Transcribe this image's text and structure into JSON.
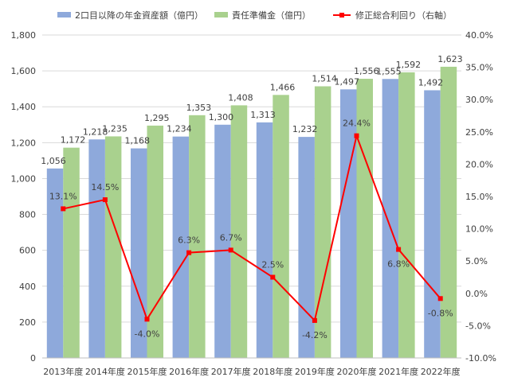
{
  "chart_data": {
    "type": "bar",
    "categories": [
      "2013年度",
      "2014年度",
      "2015年度",
      "2016年度",
      "2017年度",
      "2018年度",
      "2019年度",
      "2020年度",
      "2021年度",
      "2022年度"
    ],
    "series": [
      {
        "name": "2口目以降の年金資産額（億円）",
        "type": "bar",
        "axis": "left",
        "color": "#8EA9DB",
        "values": [
          1056,
          1218,
          1168,
          1234,
          1300,
          1313,
          1232,
          1497,
          1555,
          1492
        ],
        "labels": [
          "1,056",
          "1,218",
          "1,168",
          "1,234",
          "1,300",
          "1,313",
          "1,232",
          "1,497",
          "1,555",
          "1,492"
        ]
      },
      {
        "name": "責任準備金（億円）",
        "type": "bar",
        "axis": "left",
        "color": "#A9D18E",
        "values": [
          1172,
          1235,
          1295,
          1353,
          1408,
          1466,
          1514,
          1556,
          1592,
          1623
        ],
        "labels": [
          "1,172",
          "1,235",
          "1,295",
          "1,353",
          "1,408",
          "1,466",
          "1,514",
          "1,556",
          "1,592",
          "1,623"
        ]
      },
      {
        "name": "修正総合利回り（右軸）",
        "type": "line",
        "axis": "right",
        "color": "#FF0000",
        "values": [
          13.1,
          14.5,
          -4.0,
          6.3,
          6.7,
          2.5,
          -4.2,
          24.4,
          6.8,
          -0.8
        ],
        "labels": [
          "13.1%",
          "14.5%",
          "-4.0%",
          "6.3%",
          "6.7%",
          "2.5%",
          "-4.2%",
          "24.4%",
          "6.8%",
          "-0.8%"
        ]
      }
    ],
    "y_left": {
      "min": 0,
      "max": 1800,
      "step": 200,
      "tick_labels": [
        "0",
        "200",
        "400",
        "600",
        "800",
        "1,000",
        "1,200",
        "1,400",
        "1,600",
        "1,800"
      ]
    },
    "y_right": {
      "min": -10,
      "max": 40,
      "step": 5,
      "tick_labels": [
        "-10.0%",
        "-5.0%",
        "0.0%",
        "5.0%",
        "10.0%",
        "15.0%",
        "20.0%",
        "25.0%",
        "30.0%",
        "35.0%",
        "40.0%"
      ]
    },
    "grid": true,
    "legend": "top"
  }
}
